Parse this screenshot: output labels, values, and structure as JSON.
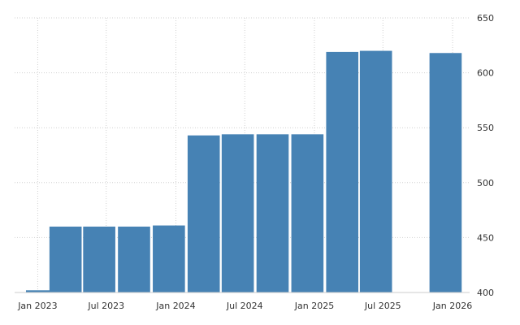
{
  "chart_data": {
    "type": "bar",
    "title": "",
    "xlabel": "",
    "ylabel": "",
    "categories": [
      "Dec 2022",
      "Feb 2023",
      "May 2023",
      "Aug 2023",
      "Nov 2023",
      "Feb 2024",
      "May 2024",
      "Aug 2024",
      "Nov 2024",
      "Feb 2025",
      "May 2025",
      "Nov 2025"
    ],
    "x_dates": [
      "2022-12-01",
      "2023-02-01",
      "2023-05-01",
      "2023-08-01",
      "2023-11-01",
      "2024-02-01",
      "2024-05-01",
      "2024-08-01",
      "2024-11-01",
      "2025-02-01",
      "2025-05-01",
      "2025-11-01"
    ],
    "values": [
      402,
      460,
      460,
      460,
      461,
      543,
      544,
      544,
      544,
      619,
      620,
      618
    ],
    "ylim": [
      400,
      650
    ],
    "yticks": [
      400,
      450,
      500,
      550,
      600,
      650
    ],
    "xticks": [
      {
        "label": "Jan 2023",
        "date": "2023-01-01"
      },
      {
        "label": "Jul 2023",
        "date": "2023-07-01"
      },
      {
        "label": "Jan 2024",
        "date": "2024-01-01"
      },
      {
        "label": "Jul 2024",
        "date": "2024-07-01"
      },
      {
        "label": "Jan 2025",
        "date": "2025-01-01"
      },
      {
        "label": "Jul 2025",
        "date": "2025-07-01"
      },
      {
        "label": "Jan 2026",
        "date": "2026-01-01"
      }
    ],
    "xlim": [
      "2022-11-01",
      "2026-02-15"
    ],
    "grid": true,
    "y_axis_side": "right",
    "bar_color": "#4682b4"
  }
}
